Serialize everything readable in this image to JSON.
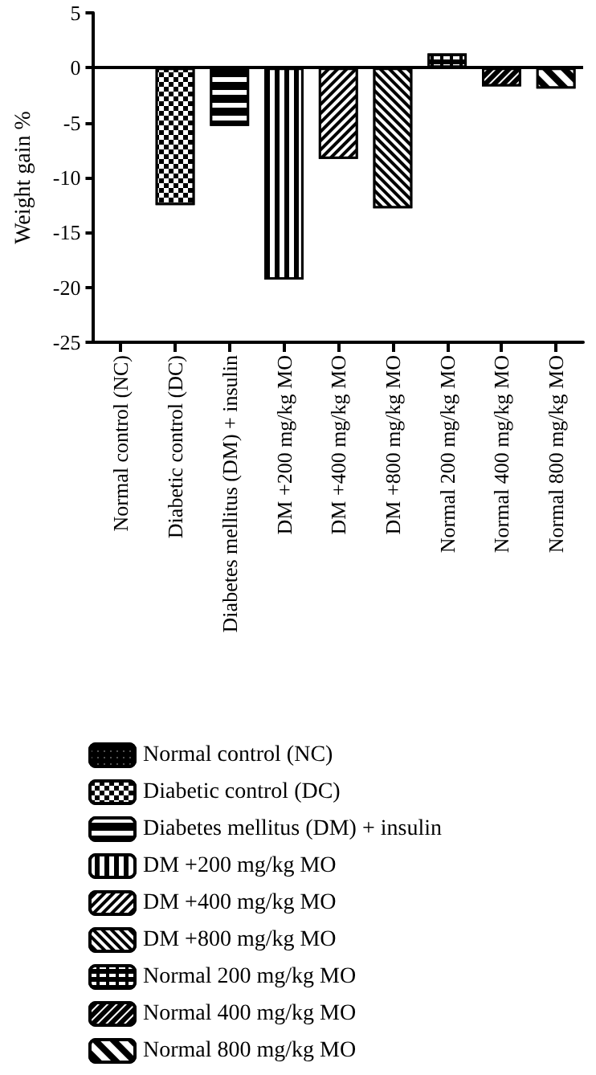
{
  "chart_data": {
    "type": "bar",
    "ylabel": "Weight gain %",
    "categories": [
      "Normal control (NC)",
      "Diabetic control (DC)",
      "Diabetes mellitus (DM) + insulin",
      "DM +200 mg/kg MO",
      "DM +400 mg/kg MO",
      "DM +800 mg/kg MO",
      "Normal 200 mg/kg MO",
      "Normal 400 mg/kg MO",
      "Normal 800 mg/kg MO"
    ],
    "series": [
      {
        "name": "Normal control (NC)",
        "color": "#000000",
        "values": [
          0,
          null,
          null,
          null,
          null,
          null,
          null,
          null,
          null
        ]
      },
      {
        "name": "Diabetic control (DC)",
        "color": "#000000",
        "values": [
          null,
          -12.5,
          null,
          null,
          null,
          null,
          null,
          null,
          null
        ]
      },
      {
        "name": "Diabetes mellitus (DM) + insulin",
        "color": "#000000",
        "values": [
          null,
          null,
          -5.3,
          null,
          null,
          null,
          null,
          null,
          null
        ]
      },
      {
        "name": "DM +200 mg/kg MO",
        "color": "#000000",
        "values": [
          null,
          null,
          null,
          -19.3,
          null,
          null,
          null,
          null,
          null
        ]
      },
      {
        "name": "DM +400 mg/kg MO",
        "color": "#000000",
        "values": [
          null,
          null,
          null,
          null,
          -8.3,
          null,
          null,
          null,
          null
        ]
      },
      {
        "name": "DM +800 mg/kg MO",
        "color": "#000000",
        "values": [
          null,
          null,
          null,
          null,
          null,
          -12.8,
          null,
          null,
          null
        ]
      },
      {
        "name": "Normal 200 mg/kg MO",
        "color": "#000000",
        "values": [
          null,
          null,
          null,
          null,
          null,
          null,
          1.3,
          null,
          null
        ]
      },
      {
        "name": "Normal 400 mg/kg MO",
        "color": "#000000",
        "values": [
          null,
          null,
          null,
          null,
          null,
          null,
          null,
          -1.7,
          null
        ]
      },
      {
        "name": "Normal 800 mg/kg MO",
        "color": "#000000",
        "values": [
          null,
          null,
          null,
          null,
          null,
          null,
          null,
          null,
          -1.9
        ]
      }
    ],
    "stacked": true,
    "ylim": [
      -25,
      5
    ],
    "yticks": [
      -25,
      -20,
      -15,
      -10,
      -5,
      0,
      5
    ],
    "ref_lines": [
      {
        "axis": "y",
        "value": 0
      }
    ],
    "grid": false,
    "legend": "bottom"
  }
}
